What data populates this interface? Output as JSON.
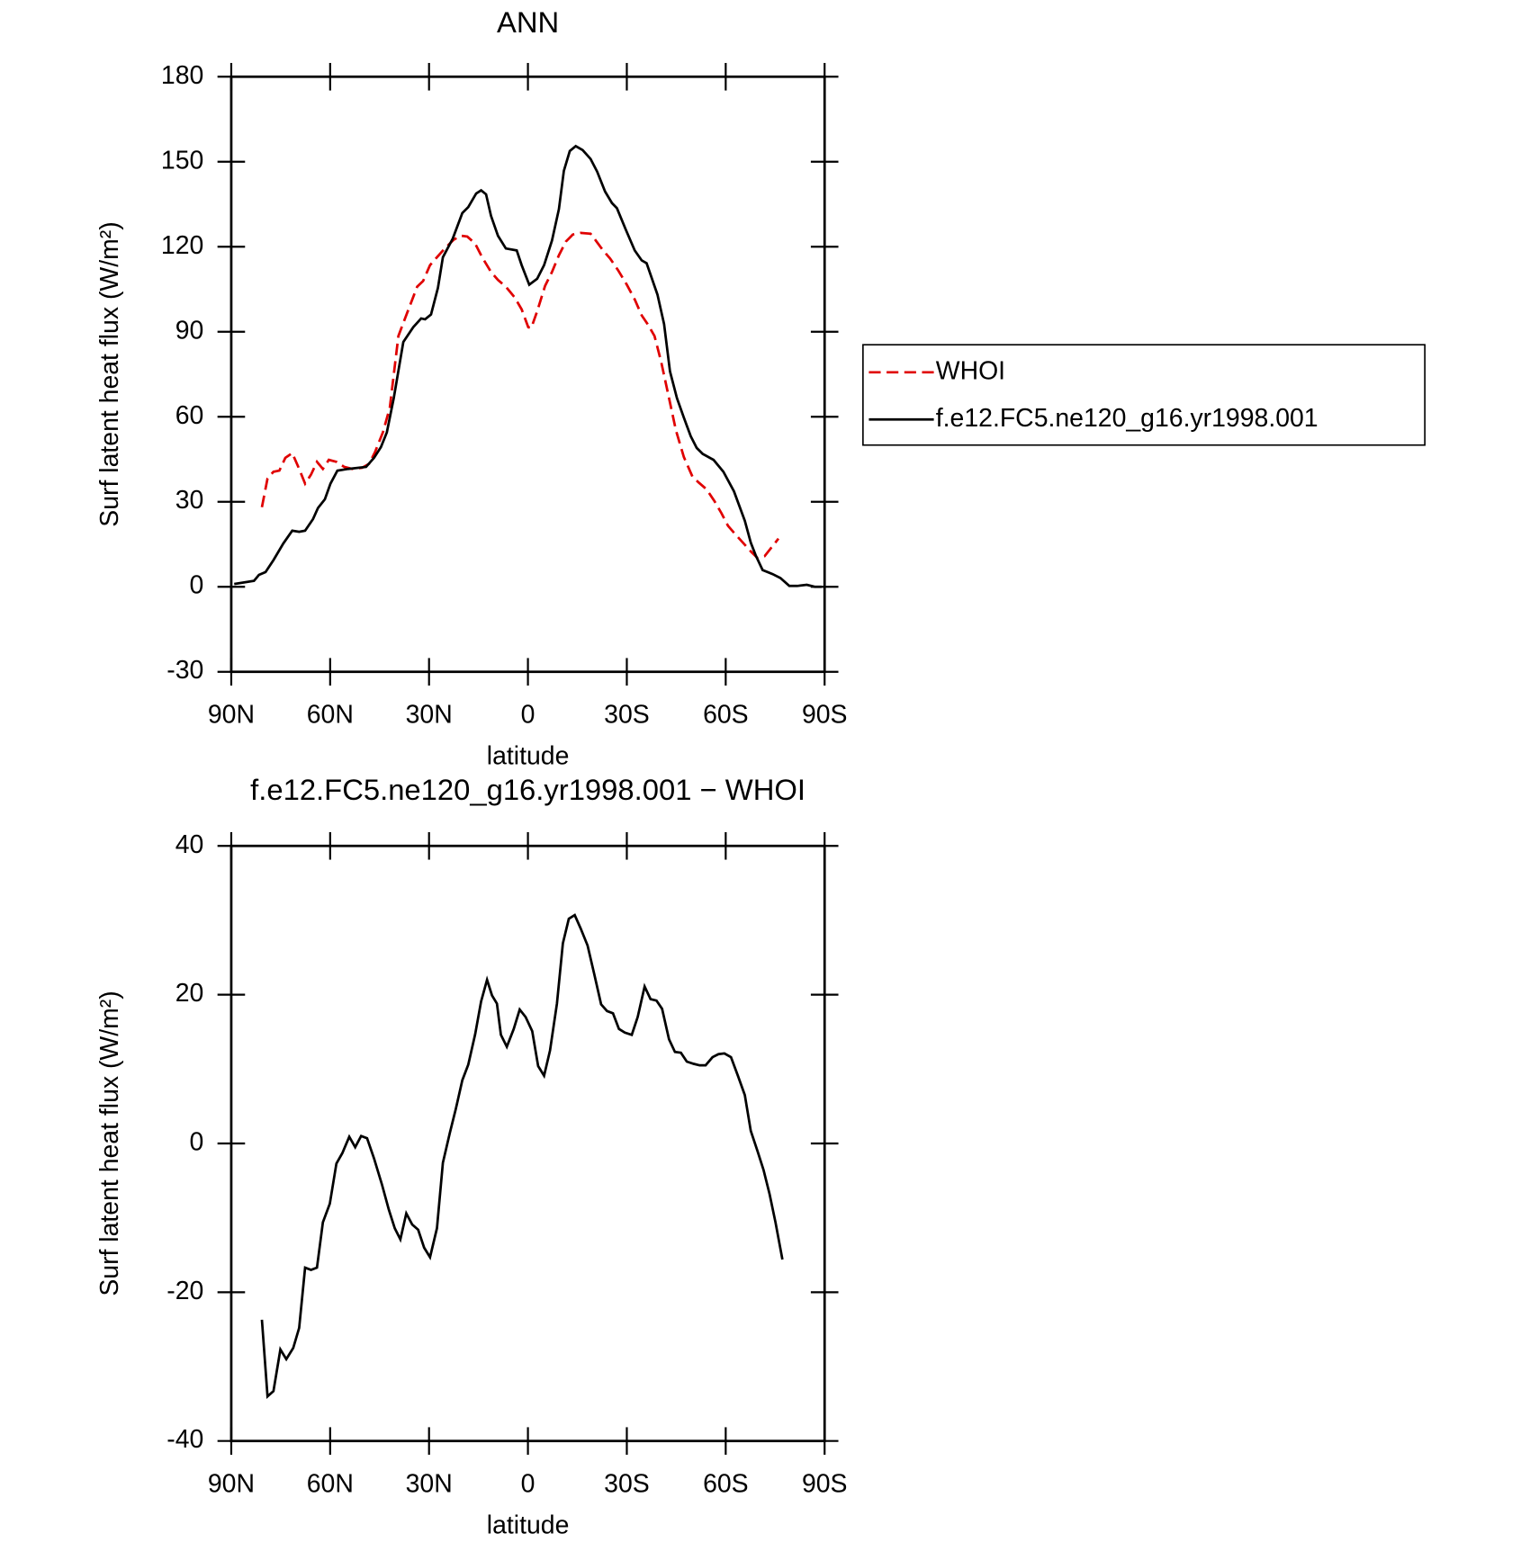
{
  "chart_data": [
    {
      "type": "line",
      "title": "ANN",
      "xlabel": "latitude",
      "ylabel": "Surf latent heat flux (W/m²)",
      "xlim": [
        90,
        -90
      ],
      "xticks": [
        {
          "value": 90,
          "label": "90N"
        },
        {
          "value": 60,
          "label": "60N"
        },
        {
          "value": 30,
          "label": "30N"
        },
        0,
        {
          "value": -30,
          "label": "30S"
        },
        {
          "value": -60,
          "label": "60S"
        },
        {
          "value": -90,
          "label": "90S"
        }
      ],
      "ylim": [
        -30,
        180
      ],
      "yticks": [
        -30,
        0,
        30,
        60,
        90,
        120,
        150,
        180
      ],
      "legend": "right",
      "series": [
        {
          "name": "WHOI",
          "color": "#e00000",
          "style": "dashed",
          "x": [
            80.7,
            79.0,
            77.2,
            75.4,
            73.6,
            71.5,
            69.4,
            67.6,
            65.8,
            64.0,
            62.2,
            60.4,
            58.1,
            55.7,
            53.3,
            50.3,
            48.2,
            46.4,
            44.0,
            41.9,
            39.3,
            36.6,
            33.6,
            31.8,
            29.7,
            27.6,
            25.2,
            22.5,
            20.4,
            18.4,
            16.0,
            13.9,
            11.2,
            9.1,
            6.7,
            4.0,
            1.9,
            -0.1,
            -1.0,
            -2.8,
            -5.2,
            -7.3,
            -9.4,
            -11.5,
            -13.6,
            -16.0,
            -19.0,
            -20.4,
            -22.8,
            -24.9,
            -27.3,
            -30.0,
            -32.4,
            -34.5,
            -36.3,
            -38.4,
            -40.4,
            -42.8,
            -44.9,
            -47.3,
            -49.9,
            -51.8,
            -54.2,
            -56.6,
            -58.7,
            -60.7,
            -62.8,
            -65.2,
            -67.6,
            -69.7,
            -71.8,
            -73.9,
            -76.0
          ],
          "values": [
            28.1,
            38.2,
            40.6,
            41.0,
            45.5,
            47.2,
            41.6,
            36.4,
            39.6,
            44.1,
            41.6,
            44.8,
            44.1,
            42.3,
            41.6,
            42.0,
            43.4,
            47.5,
            54.5,
            63.2,
            88.5,
            96.8,
            105.9,
            107.9,
            113.5,
            116.3,
            119.4,
            122.5,
            123.9,
            123.6,
            121.1,
            116.3,
            111.1,
            108.3,
            105.9,
            102.1,
            97.9,
            91.6,
            91.3,
            97.2,
            106.2,
            111.1,
            117.0,
            121.8,
            124.3,
            124.9,
            124.6,
            122.5,
            118.7,
            115.9,
            111.8,
            106.6,
            101.4,
            95.8,
            92.7,
            88.5,
            79.5,
            66.6,
            55.2,
            45.8,
            38.9,
            36.8,
            34.4,
            30.2,
            26.0,
            21.5,
            18.7,
            15.6,
            12.5,
            10.1,
            10.8,
            13.9,
            17.0
          ]
        },
        {
          "name": "f.e12.FC5.ne120_g16.yr1998.001",
          "color": "#000000",
          "style": "solid",
          "x": [
            89.1,
            83.1,
            81.6,
            79.6,
            77.2,
            74.2,
            71.5,
            69.4,
            67.6,
            65.2,
            63.7,
            61.6,
            59.9,
            57.8,
            54.5,
            49.1,
            46.7,
            44.6,
            42.8,
            40.7,
            37.8,
            34.8,
            32.4,
            31.2,
            29.4,
            27.3,
            25.8,
            22.8,
            19.9,
            18.1,
            15.7,
            14.2,
            12.7,
            11.2,
            9.1,
            6.7,
            3.4,
            1.9,
            -0.4,
            -2.8,
            -4.9,
            -7.3,
            -9.4,
            -10.9,
            -12.7,
            -14.5,
            -16.6,
            -19.0,
            -21.0,
            -23.4,
            -25.5,
            -27.0,
            -29.7,
            -32.4,
            -34.5,
            -36.0,
            -39.3,
            -41.3,
            -43.1,
            -45.2,
            -47.3,
            -49.4,
            -51.2,
            -53.0,
            -56.3,
            -59.3,
            -62.5,
            -65.8,
            -67.6,
            -69.1,
            -71.2,
            -74.2,
            -76.6,
            -79.3,
            -81.7,
            -84.6,
            -87.0,
            -89.1
          ],
          "values": [
            1.0,
            2.1,
            4.2,
            5.2,
            9.4,
            15.3,
            19.8,
            19.4,
            19.8,
            23.9,
            27.8,
            30.9,
            36.4,
            41.0,
            41.6,
            42.3,
            45.5,
            49.3,
            54.5,
            66.6,
            86.4,
            91.6,
            94.7,
            94.4,
            96.1,
            105.5,
            116.3,
            122.9,
            131.9,
            134.0,
            138.8,
            139.9,
            138.5,
            130.9,
            123.9,
            119.4,
            118.7,
            113.5,
            106.6,
            108.7,
            113.5,
            122.2,
            133.3,
            146.8,
            153.8,
            155.5,
            154.1,
            151.0,
            146.5,
            139.5,
            135.4,
            133.6,
            126.0,
            118.7,
            115.2,
            114.2,
            103.1,
            92.7,
            76.0,
            66.6,
            59.7,
            53.1,
            49.0,
            46.9,
            44.8,
            40.6,
            33.7,
            23.3,
            15.6,
            11.1,
            5.9,
            4.5,
            3.1,
            0.3,
            0.3,
            0.7,
            0,
            0
          ]
        }
      ]
    },
    {
      "type": "line",
      "title": "f.e12.FC5.ne120_g16.yr1998.001 − WHOI",
      "xlabel": "latitude",
      "ylabel": "Surf latent heat flux (W/m²)",
      "xlim": [
        90,
        -90
      ],
      "xticks": [
        {
          "value": 90,
          "label": "90N"
        },
        {
          "value": 60,
          "label": "60N"
        },
        {
          "value": 30,
          "label": "30N"
        },
        0,
        {
          "value": -30,
          "label": "30S"
        },
        {
          "value": -60,
          "label": "60S"
        },
        {
          "value": -90,
          "label": "90S"
        }
      ],
      "ylim": [
        -40,
        40
      ],
      "yticks": [
        -40,
        -20,
        0,
        20,
        40
      ],
      "series": [
        {
          "color": "#000000",
          "style": "solid",
          "x": [
            80.7,
            79.0,
            77.2,
            75.1,
            73.3,
            71.2,
            69.4,
            67.6,
            65.8,
            64.0,
            62.2,
            60.1,
            58.1,
            56.3,
            54.2,
            52.4,
            50.6,
            48.8,
            46.7,
            44.3,
            42.2,
            40.4,
            38.7,
            36.9,
            35.1,
            33.3,
            31.5,
            29.7,
            27.6,
            25.8,
            23.7,
            21.9,
            19.9,
            18.1,
            16.0,
            14.2,
            12.4,
            10.9,
            9.4,
            8.2,
            6.4,
            4.3,
            2.5,
            0.7,
            -1.3,
            -3.1,
            -4.9,
            -6.7,
            -8.8,
            -10.6,
            -12.4,
            -14.2,
            -16.0,
            -18.1,
            -20.1,
            -22.2,
            -24.0,
            -25.8,
            -27.6,
            -29.4,
            -31.5,
            -33.3,
            -35.4,
            -37.2,
            -39.0,
            -40.7,
            -42.8,
            -44.6,
            -46.4,
            -48.2,
            -50.3,
            -52.1,
            -53.9,
            -56.0,
            -57.8,
            -59.6,
            -61.6,
            -63.7,
            -65.8,
            -67.6,
            -69.7,
            -71.5,
            -73.3,
            -75.1,
            -77.2
          ],
          "values": [
            -23.7,
            -34.0,
            -33.3,
            -27.7,
            -29.0,
            -27.5,
            -24.8,
            -16.7,
            -17.0,
            -16.7,
            -10.6,
            -8.1,
            -2.7,
            -1.3,
            0.9,
            -0.5,
            1.0,
            0.7,
            -2.0,
            -5.5,
            -8.9,
            -11.4,
            -12.9,
            -9.4,
            -10.9,
            -11.6,
            -14.0,
            -15.3,
            -11.4,
            -2.6,
            1.4,
            4.6,
            8.5,
            10.6,
            14.7,
            19.1,
            22.0,
            19.9,
            18.8,
            14.6,
            13.0,
            15.4,
            18.0,
            17.0,
            15.1,
            10.4,
            9.1,
            12.5,
            18.8,
            26.9,
            30.2,
            30.7,
            28.9,
            26.6,
            22.8,
            18.7,
            17.8,
            17.5,
            15.4,
            14.9,
            14.6,
            17.0,
            21.1,
            19.4,
            19.2,
            18.1,
            14.0,
            12.3,
            12.2,
            11.0,
            10.7,
            10.5,
            10.5,
            11.6,
            12.0,
            12.1,
            11.6,
            9.1,
            6.5,
            1.7,
            -1.1,
            -3.6,
            -6.8,
            -10.6,
            -15.6
          ]
        }
      ]
    }
  ]
}
